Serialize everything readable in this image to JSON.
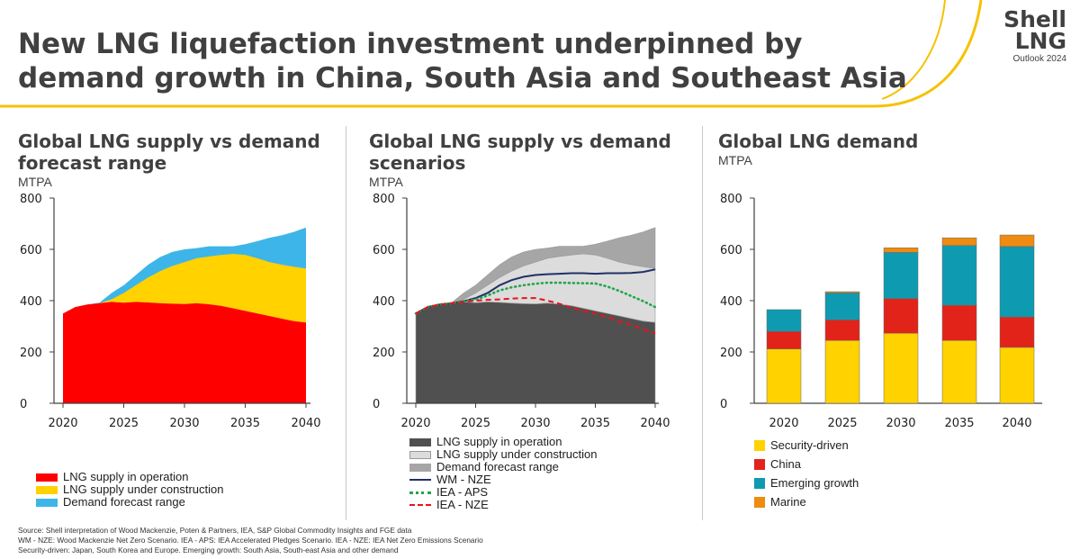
{
  "header": {
    "title": "New LNG liquefaction investment underpinned by demand growth in China, South Asia and Southeast Asia",
    "logo_brand_line1": "Shell",
    "logo_brand_line2": "LNG",
    "logo_sub": "Outlook 2024"
  },
  "colors": {
    "accent_yellow": "#F6C200",
    "operation_red": "#FF0000",
    "construction_yellow": "#FFD200",
    "demand_blue": "#3EB5E8",
    "overlap_green": "#45A68E",
    "operation_dark": "#505050",
    "construction_light": "#DCDCDC",
    "demand_grey": "#A6A6A6",
    "wm_nze": "#1F3168",
    "iea_aps": "#21A64B",
    "iea_nze": "#E8131C",
    "security_yellow": "#FFD200",
    "china_red": "#E2231A",
    "emerging_teal": "#0E9BB1",
    "marine_orange": "#EE8B10"
  },
  "charts": [
    {
      "title": "Global LNG supply vs demand forecast range",
      "unit": "MTPA",
      "legend": [
        "LNG supply in operation",
        "LNG supply under construction",
        "Demand forecast range"
      ]
    },
    {
      "title": "Global LNG supply vs demand scenarios",
      "unit": "MTPA",
      "legend": [
        "LNG supply in operation",
        "LNG supply under construction",
        "Demand forecast range",
        "WM - NZE",
        "IEA - APS",
        "IEA - NZE"
      ]
    },
    {
      "title": "Global LNG demand",
      "unit": "MTPA",
      "legend": [
        "Security-driven",
        "China",
        "Emerging growth",
        "Marine"
      ]
    }
  ],
  "chart_data": [
    {
      "type": "area",
      "title": "Global LNG supply vs demand forecast range",
      "ylabel": "MTPA",
      "ylim": [
        0,
        800
      ],
      "yticks": [
        0,
        200,
        400,
        600,
        800
      ],
      "xticks": [
        2020,
        2025,
        2030,
        2035,
        2040
      ],
      "xlim": [
        2020,
        2040
      ],
      "grid": false,
      "x": [
        2020,
        2021,
        2022,
        2023,
        2024,
        2025,
        2026,
        2027,
        2028,
        2029,
        2030,
        2031,
        2032,
        2033,
        2034,
        2035,
        2036,
        2037,
        2038,
        2039,
        2040
      ],
      "series": [
        {
          "name": "LNG supply in operation",
          "values": [
            350,
            375,
            385,
            390,
            395,
            392,
            395,
            393,
            390,
            388,
            387,
            390,
            386,
            380,
            370,
            360,
            350,
            340,
            330,
            320,
            315
          ]
        },
        {
          "name": "LNG supply under construction",
          "values": [
            350,
            375,
            385,
            390,
            405,
            430,
            460,
            490,
            515,
            535,
            550,
            565,
            572,
            578,
            582,
            578,
            565,
            550,
            540,
            532,
            525
          ]
        },
        {
          "name": "Demand forecast range",
          "low": [
            350,
            375,
            385,
            390,
            405,
            430,
            460,
            490,
            515,
            535,
            550,
            565,
            572,
            578,
            582,
            578,
            565,
            550,
            540,
            532,
            525
          ],
          "high": [
            350,
            375,
            385,
            392,
            430,
            460,
            500,
            540,
            570,
            590,
            600,
            605,
            612,
            612,
            612,
            620,
            632,
            645,
            655,
            668,
            685
          ]
        }
      ]
    },
    {
      "type": "area",
      "title": "Global LNG supply vs demand scenarios",
      "ylabel": "MTPA",
      "ylim": [
        0,
        800
      ],
      "yticks": [
        0,
        200,
        400,
        600,
        800
      ],
      "xticks": [
        2020,
        2025,
        2030,
        2035,
        2040
      ],
      "xlim": [
        2020,
        2040
      ],
      "grid": false,
      "x": [
        2020,
        2021,
        2022,
        2023,
        2024,
        2025,
        2026,
        2027,
        2028,
        2029,
        2030,
        2031,
        2032,
        2033,
        2034,
        2035,
        2036,
        2037,
        2038,
        2039,
        2040
      ],
      "series": [
        {
          "name": "LNG supply in operation",
          "values": [
            350,
            375,
            385,
            390,
            395,
            392,
            395,
            393,
            390,
            388,
            387,
            390,
            386,
            380,
            370,
            360,
            350,
            340,
            330,
            320,
            315
          ]
        },
        {
          "name": "LNG supply under construction",
          "values": [
            350,
            375,
            385,
            390,
            405,
            430,
            460,
            490,
            515,
            535,
            550,
            565,
            572,
            578,
            582,
            578,
            565,
            550,
            540,
            532,
            525
          ]
        },
        {
          "name": "Demand forecast range",
          "low": [
            350,
            375,
            385,
            390,
            405,
            430,
            460,
            490,
            515,
            535,
            550,
            565,
            572,
            578,
            582,
            578,
            565,
            550,
            540,
            532,
            525
          ],
          "high": [
            350,
            375,
            385,
            392,
            430,
            460,
            500,
            540,
            570,
            590,
            600,
            605,
            612,
            612,
            612,
            620,
            632,
            645,
            655,
            668,
            685
          ]
        },
        {
          "name": "WM - NZE",
          "values": [
            350,
            375,
            385,
            390,
            398,
            410,
            430,
            460,
            480,
            493,
            500,
            503,
            505,
            507,
            507,
            505,
            507,
            507,
            508,
            512,
            522
          ]
        },
        {
          "name": "IEA - APS",
          "values": [
            350,
            375,
            385,
            390,
            398,
            405,
            420,
            440,
            452,
            460,
            466,
            470,
            470,
            469,
            468,
            467,
            455,
            438,
            418,
            398,
            375
          ]
        },
        {
          "name": "IEA - NZE",
          "values": [
            350,
            375,
            385,
            390,
            396,
            400,
            403,
            405,
            408,
            410,
            410,
            400,
            388,
            372,
            360,
            350,
            335,
            320,
            305,
            288,
            272
          ]
        }
      ]
    },
    {
      "type": "bar",
      "stacked": true,
      "title": "Global LNG demand",
      "ylabel": "MTPA",
      "ylim": [
        0,
        800
      ],
      "yticks": [
        0,
        200,
        400,
        600,
        800
      ],
      "grid": false,
      "categories": [
        "2020",
        "2025",
        "2030",
        "2035",
        "2040"
      ],
      "series": [
        {
          "name": "Security-driven",
          "values": [
            212,
            245,
            273,
            245,
            218
          ]
        },
        {
          "name": "China",
          "values": [
            68,
            80,
            135,
            137,
            118
          ]
        },
        {
          "name": "Emerging growth",
          "values": [
            85,
            105,
            180,
            233,
            275
          ]
        },
        {
          "name": "Marine",
          "values": [
            0,
            5,
            18,
            30,
            45
          ]
        }
      ]
    }
  ],
  "footer": {
    "line1": "Source: Shell interpretation of Wood Mackenzie, Poten & Partners, IEA, S&P Global Commodity Insights and FGE data",
    "line2": "WM - NZE: Wood Mackenzie Net Zero Scenario. IEA - APS: IEA Accelerated Pledges Scenario. IEA - NZE: IEA Net Zero Emissions Scenario",
    "line3": "Security-driven: Japan, South Korea and Europe. Emerging growth: South Asia, South-east Asia and other demand"
  }
}
